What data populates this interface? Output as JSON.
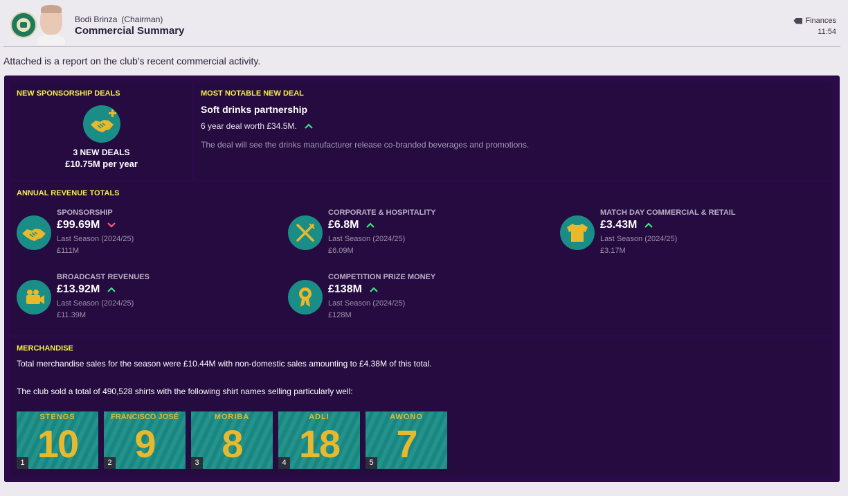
{
  "header": {
    "sender_name": "Bodi Brinza",
    "sender_role": "(Chairman)",
    "subject": "Commercial Summary",
    "category": "Finances",
    "time": "11:54"
  },
  "intro": "Attached is a report on the club's recent commercial activity.",
  "new_deals": {
    "title": "NEW SPONSORSHIP DEALS",
    "count_text": "3 NEW DEALS",
    "per_year": "£10.75M per year",
    "icon": "handshake-plus-icon"
  },
  "notable_deal": {
    "title": "MOST NOTABLE NEW DEAL",
    "name": "Soft drinks partnership",
    "worth": "6 year deal worth £34.5M.",
    "trend": "up",
    "description": "The deal will see the drinks manufacturer release co-branded beverages and promotions."
  },
  "annual_revenue": {
    "title": "ANNUAL REVENUE TOTALS",
    "items": [
      {
        "label": "SPONSORSHIP",
        "value": "£99.69M",
        "trend": "down",
        "last_label": "Last Season (2024/25)",
        "last_value": "£111M",
        "icon": "handshake-icon"
      },
      {
        "label": "CORPORATE & HOSPITALITY",
        "value": "£6.8M",
        "trend": "up",
        "last_label": "Last Season (2024/25)",
        "last_value": "£6.09M",
        "icon": "cutlery-icon"
      },
      {
        "label": "MATCH DAY COMMERCIAL & RETAIL",
        "value": "£3.43M",
        "trend": "up",
        "last_label": "Last Season (2024/25)",
        "last_value": "£3.17M",
        "icon": "shirt-icon"
      },
      {
        "label": "BROADCAST REVENUES",
        "value": "£13.92M",
        "trend": "up",
        "last_label": "Last Season (2024/25)",
        "last_value": "£11.39M",
        "icon": "video-camera-icon"
      },
      {
        "label": "COMPETITION PRIZE MONEY",
        "value": "£138M",
        "trend": "up",
        "last_label": "Last Season (2024/25)",
        "last_value": "£128M",
        "icon": "medal-icon"
      }
    ]
  },
  "merchandise": {
    "title": "MERCHANDISE",
    "sales_text": "Total merchandise sales for the season were £10.44M with non-domestic sales amounting to £4.38M of this total.",
    "shirts_text": "The club sold a total of 490,528 shirts with the following shirt names selling particularly well:",
    "shirts": [
      {
        "name": "STENGS",
        "number": "10",
        "rank": "1"
      },
      {
        "name": "FRANCISCO JOSÉ",
        "number": "9",
        "rank": "2"
      },
      {
        "name": "MORIBA",
        "number": "8",
        "rank": "3"
      },
      {
        "name": "ADLI",
        "number": "18",
        "rank": "4"
      },
      {
        "name": "AWONO",
        "number": "7",
        "rank": "5"
      }
    ]
  },
  "colors": {
    "panel": "#2b0a48",
    "card": "#250b3f",
    "accent_yellow": "#f4ef4b",
    "icon_teal": "#1b8d87",
    "trend_up": "#3ee08a",
    "trend_down": "#ff5a7a",
    "shirt_gold": "#e8b92c"
  }
}
